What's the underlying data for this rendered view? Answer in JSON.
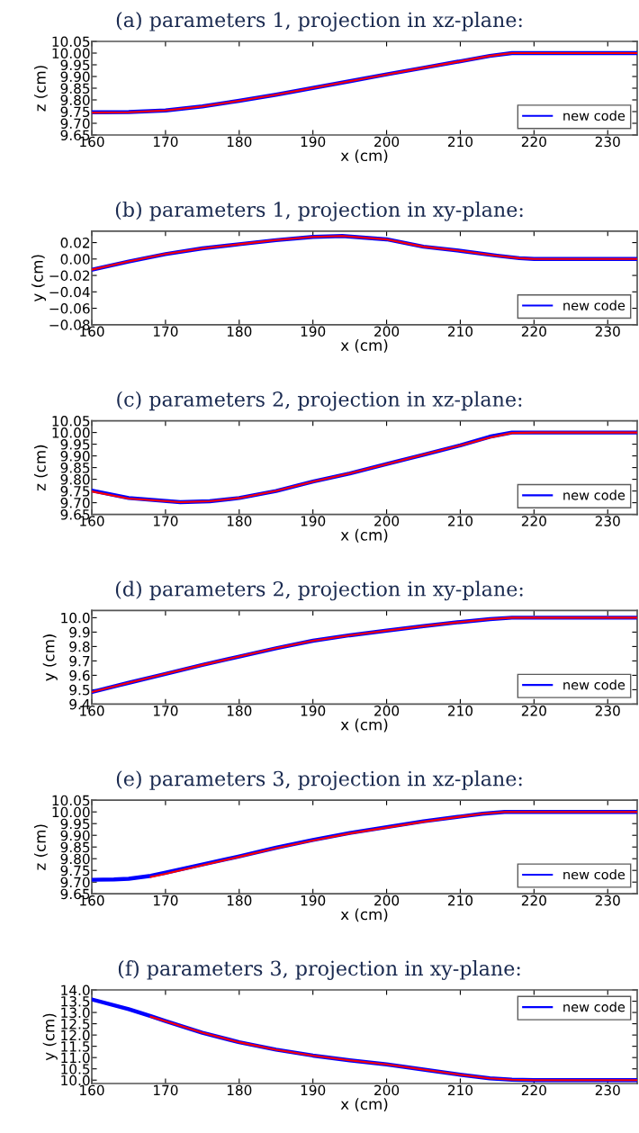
{
  "chart_data": [
    {
      "type": "line",
      "title": "(a) parameters 1, projection in xz-plane:",
      "xlabel": "x (cm)",
      "ylabel": "z (cm)",
      "xlim": [
        160,
        234
      ],
      "xticks": [
        160,
        170,
        180,
        190,
        200,
        210,
        220,
        230
      ],
      "ylim": [
        9.65,
        10.05
      ],
      "yticks": [
        {
          "value": 9.65,
          "label": "9.65"
        },
        {
          "value": 9.7,
          "label": "9.70"
        },
        {
          "value": 9.75,
          "label": "9.75"
        },
        {
          "value": 9.8,
          "label": "9.80"
        },
        {
          "value": 9.85,
          "label": "9.85"
        },
        {
          "value": 9.9,
          "label": "9.90"
        },
        {
          "value": 9.95,
          "label": "9.95"
        },
        {
          "value": 10.0,
          "label": "10.00"
        },
        {
          "value": 10.05,
          "label": "10.05"
        }
      ],
      "legend": "bottom right",
      "grid": false,
      "series": [
        {
          "name": "new code",
          "color": "#0000ff",
          "x": [
            160,
            165,
            170,
            175,
            180,
            185,
            190,
            195,
            200,
            205,
            210,
            214,
            217,
            220,
            234
          ],
          "values": [
            9.747,
            9.748,
            9.755,
            9.772,
            9.796,
            9.822,
            9.851,
            9.88,
            9.909,
            9.937,
            9.965,
            9.988,
            10.0,
            10.0,
            10.0
          ]
        },
        {
          "color": "#ff0000",
          "x": [
            160,
            165,
            170,
            175,
            180,
            185,
            190,
            195,
            200,
            205,
            210,
            214,
            217,
            220,
            234
          ],
          "values": [
            9.745,
            9.747,
            9.755,
            9.772,
            9.796,
            9.822,
            9.851,
            9.88,
            9.909,
            9.937,
            9.965,
            9.988,
            10.0,
            10.0,
            10.0
          ]
        }
      ]
    },
    {
      "type": "line",
      "title": "(b) parameters 1, projection in xy-plane:",
      "xlabel": "x (cm)",
      "ylabel": "y (cm)",
      "xlim": [
        160,
        234
      ],
      "xticks": [
        160,
        170,
        180,
        190,
        200,
        210,
        220,
        230
      ],
      "ylim": [
        -0.08,
        0.034
      ],
      "yticks": [
        {
          "value": -0.08,
          "label": "−0.08"
        },
        {
          "value": -0.06,
          "label": "−0.06"
        },
        {
          "value": -0.04,
          "label": "−0.04"
        },
        {
          "value": -0.02,
          "label": "−0.02"
        },
        {
          "value": 0.0,
          "label": "0.00"
        },
        {
          "value": 0.02,
          "label": "0.02"
        }
      ],
      "legend": "bottom right",
      "grid": false,
      "series": [
        {
          "name": "new code",
          "color": "#0000ff",
          "x": [
            160,
            165,
            170,
            175,
            180,
            185,
            190,
            194,
            200,
            205,
            210,
            215,
            218,
            220,
            234
          ],
          "values": [
            -0.013,
            -0.003,
            0.006,
            0.013,
            0.018,
            0.023,
            0.027,
            0.028,
            0.024,
            0.015,
            0.01,
            0.004,
            0.001,
            0.0,
            0.0
          ]
        },
        {
          "color": "#ff0000",
          "x": [
            160,
            165,
            170,
            175,
            180,
            185,
            190,
            194,
            200,
            205,
            210,
            215,
            218,
            220,
            234
          ],
          "values": [
            -0.013,
            -0.003,
            0.006,
            0.013,
            0.018,
            0.023,
            0.027,
            0.028,
            0.024,
            0.015,
            0.01,
            0.004,
            0.001,
            0.0,
            0.0
          ]
        }
      ]
    },
    {
      "type": "line",
      "title": "(c) parameters 2, projection in xz-plane:",
      "xlabel": "x (cm)",
      "ylabel": "z (cm)",
      "xlim": [
        160,
        234
      ],
      "xticks": [
        160,
        170,
        180,
        190,
        200,
        210,
        220,
        230
      ],
      "ylim": [
        9.65,
        10.05
      ],
      "yticks": [
        {
          "value": 9.65,
          "label": "9.65"
        },
        {
          "value": 9.7,
          "label": "9.70"
        },
        {
          "value": 9.75,
          "label": "9.75"
        },
        {
          "value": 9.8,
          "label": "9.80"
        },
        {
          "value": 9.85,
          "label": "9.85"
        },
        {
          "value": 9.9,
          "label": "9.90"
        },
        {
          "value": 9.95,
          "label": "9.95"
        },
        {
          "value": 10.0,
          "label": "10.00"
        },
        {
          "value": 10.05,
          "label": "10.05"
        }
      ],
      "legend": "bottom right",
      "grid": false,
      "series": [
        {
          "name": "new code",
          "color": "#0000ff",
          "x": [
            160,
            165,
            172,
            176,
            180,
            185,
            190,
            195,
            200,
            205,
            210,
            214,
            217,
            220,
            234
          ],
          "values": [
            9.752,
            9.72,
            9.702,
            9.706,
            9.72,
            9.75,
            9.79,
            9.825,
            9.865,
            9.905,
            9.945,
            9.982,
            10.0,
            10.0,
            10.0
          ]
        },
        {
          "color": "#ff0000",
          "x": [
            160,
            165,
            172,
            176,
            180,
            185,
            190,
            195,
            200,
            205,
            210,
            214,
            217,
            220,
            234
          ],
          "values": [
            9.748,
            9.718,
            9.702,
            9.706,
            9.72,
            9.75,
            9.79,
            9.825,
            9.865,
            9.905,
            9.945,
            9.978,
            9.998,
            10.0,
            10.0
          ]
        }
      ]
    },
    {
      "type": "line",
      "title": "(d) parameters 2, projection in xy-plane:",
      "xlabel": "x (cm)",
      "ylabel": "y (cm)",
      "xlim": [
        160,
        234
      ],
      "xticks": [
        160,
        170,
        180,
        190,
        200,
        210,
        220,
        230
      ],
      "ylim": [
        9.4,
        10.05
      ],
      "yticks": [
        {
          "value": 9.4,
          "label": "9.4"
        },
        {
          "value": 9.5,
          "label": "9.5"
        },
        {
          "value": 9.6,
          "label": "9.6"
        },
        {
          "value": 9.7,
          "label": "9.7"
        },
        {
          "value": 9.8,
          "label": "9.8"
        },
        {
          "value": 9.9,
          "label": "9.9"
        },
        {
          "value": 10.0,
          "label": "10.0"
        }
      ],
      "legend": "bottom right",
      "grid": false,
      "series": [
        {
          "name": "new code",
          "color": "#0000ff",
          "x": [
            160,
            165,
            170,
            175,
            180,
            185,
            190,
            195,
            200,
            205,
            210,
            214,
            217,
            220,
            234
          ],
          "values": [
            9.484,
            9.548,
            9.61,
            9.672,
            9.73,
            9.788,
            9.84,
            9.878,
            9.91,
            9.942,
            9.97,
            9.99,
            10.0,
            10.0,
            10.0
          ]
        },
        {
          "color": "#ff0000",
          "x": [
            160,
            165,
            170,
            175,
            180,
            185,
            190,
            195,
            200,
            205,
            210,
            214,
            217,
            220,
            234
          ],
          "values": [
            9.484,
            9.548,
            9.61,
            9.672,
            9.73,
            9.788,
            9.84,
            9.878,
            9.91,
            9.942,
            9.97,
            9.99,
            10.0,
            10.0,
            10.0
          ]
        }
      ]
    },
    {
      "type": "line",
      "title": "(e) parameters 3, projection in xz-plane:",
      "xlabel": "x (cm)",
      "ylabel": "z (cm)",
      "xlim": [
        160,
        234
      ],
      "xticks": [
        160,
        170,
        180,
        190,
        200,
        210,
        220,
        230
      ],
      "ylim": [
        9.65,
        10.05
      ],
      "yticks": [
        {
          "value": 9.65,
          "label": "9.65"
        },
        {
          "value": 9.7,
          "label": "9.70"
        },
        {
          "value": 9.75,
          "label": "9.75"
        },
        {
          "value": 9.8,
          "label": "9.80"
        },
        {
          "value": 9.85,
          "label": "9.85"
        },
        {
          "value": 9.9,
          "label": "9.90"
        },
        {
          "value": 9.95,
          "label": "9.95"
        },
        {
          "value": 10.0,
          "label": "10.00"
        },
        {
          "value": 10.05,
          "label": "10.05"
        }
      ],
      "legend": "bottom right",
      "grid": false,
      "series": [
        {
          "name": "new code",
          "color": "#0000ff",
          "x": [
            160,
            163,
            165,
            168,
            170,
            175,
            180,
            185,
            190,
            195,
            200,
            205,
            210,
            213,
            216,
            220,
            234
          ],
          "values": [
            9.71,
            9.711,
            9.714,
            9.727,
            9.74,
            9.775,
            9.81,
            9.847,
            9.88,
            9.91,
            9.935,
            9.96,
            9.98,
            9.992,
            10.0,
            10.0,
            10.0
          ]
        },
        {
          "color": "#ff0000",
          "x": [
            168,
            170,
            175,
            180,
            185,
            190,
            195,
            200,
            205,
            210,
            213,
            216,
            220,
            234
          ],
          "values": [
            9.722,
            9.735,
            9.772,
            9.808,
            9.845,
            9.878,
            9.908,
            9.933,
            9.958,
            9.98,
            9.992,
            10.0,
            10.0,
            10.0
          ]
        }
      ]
    },
    {
      "type": "line",
      "title": "(f) parameters 3, projection in xy-plane:",
      "xlabel": "x (cm)",
      "ylabel": "y (cm)",
      "xlim": [
        160,
        234
      ],
      "xticks": [
        160,
        170,
        180,
        190,
        200,
        210,
        220,
        230
      ],
      "ylim": [
        9.85,
        14.0
      ],
      "yticks": [
        {
          "value": 10.0,
          "label": "10.0"
        },
        {
          "value": 10.5,
          "label": "10.5"
        },
        {
          "value": 11.0,
          "label": "11.0"
        },
        {
          "value": 11.5,
          "label": "11.5"
        },
        {
          "value": 12.0,
          "label": "12.0"
        },
        {
          "value": 12.5,
          "label": "12.5"
        },
        {
          "value": 13.0,
          "label": "13.0"
        },
        {
          "value": 13.5,
          "label": "13.5"
        },
        {
          "value": 14.0,
          "label": "14.0"
        }
      ],
      "legend": "top right",
      "grid": false,
      "series": [
        {
          "name": "new code",
          "color": "#0000ff",
          "x": [
            160,
            165,
            168,
            170,
            175,
            180,
            185,
            190,
            195,
            200,
            205,
            210,
            214,
            217,
            220,
            234
          ],
          "values": [
            13.58,
            13.15,
            12.84,
            12.62,
            12.1,
            11.68,
            11.35,
            11.09,
            10.88,
            10.7,
            10.47,
            10.24,
            10.08,
            10.02,
            10.0,
            10.0
          ]
        },
        {
          "color": "#ff0000",
          "x": [
            168,
            170,
            175,
            180,
            185,
            190,
            195,
            200,
            205,
            210,
            214,
            217,
            220,
            234
          ],
          "values": [
            12.81,
            12.61,
            12.1,
            11.68,
            11.35,
            11.09,
            10.88,
            10.7,
            10.47,
            10.24,
            10.08,
            10.02,
            10.0,
            10.0
          ]
        }
      ]
    }
  ]
}
